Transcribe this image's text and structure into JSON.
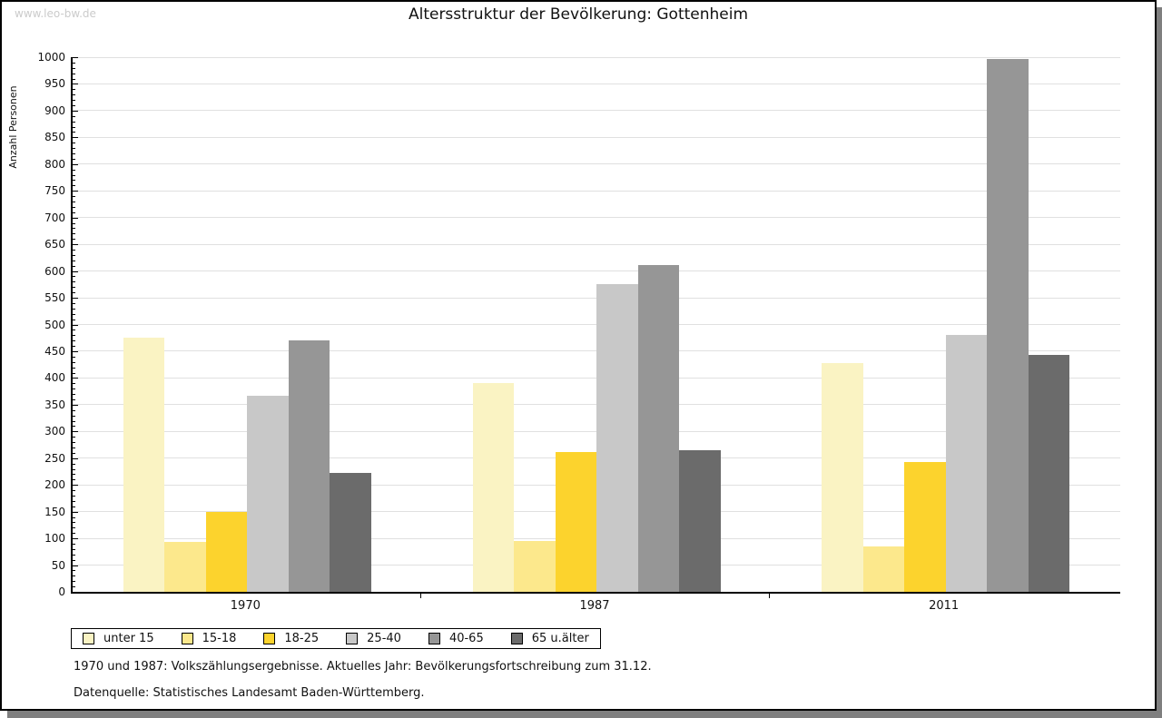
{
  "watermark": "www.leo-bw.de",
  "title": "Altersstruktur der Bevölkerung: Gottenheim",
  "chart_data": {
    "type": "bar",
    "title": "Altersstruktur der Bevölkerung: Gottenheim",
    "ylabel": "Anzahl Personen",
    "xlabel": "",
    "categories": [
      "1970",
      "1987",
      "2011"
    ],
    "series": [
      {
        "name": "unter 15",
        "color": "#FAF3C3",
        "values": [
          475,
          390,
          428
        ]
      },
      {
        "name": "15-18",
        "color": "#FCE88C",
        "values": [
          94,
          95,
          85
        ]
      },
      {
        "name": "18-25",
        "color": "#FCD32D",
        "values": [
          150,
          262,
          242
        ]
      },
      {
        "name": "25-40",
        "color": "#C8C8C8",
        "values": [
          366,
          575,
          480
        ]
      },
      {
        "name": "40-65",
        "color": "#969696",
        "values": [
          471,
          611,
          997
        ]
      },
      {
        "name": "65 u.älter",
        "color": "#6B6B6B",
        "values": [
          222,
          265,
          443
        ]
      }
    ],
    "ylim": [
      0,
      1000
    ],
    "ytick_step": 50,
    "minor_tick_step": 10,
    "grid": true,
    "legend_position": "bottom-left"
  },
  "footer": {
    "line1": "1970 und 1987: Volkszählungsergebnisse. Aktuelles Jahr: Bevölkerungsfortschreibung zum 31.12.",
    "line2": "Datenquelle: Statistisches Landesamt Baden-Württemberg."
  }
}
